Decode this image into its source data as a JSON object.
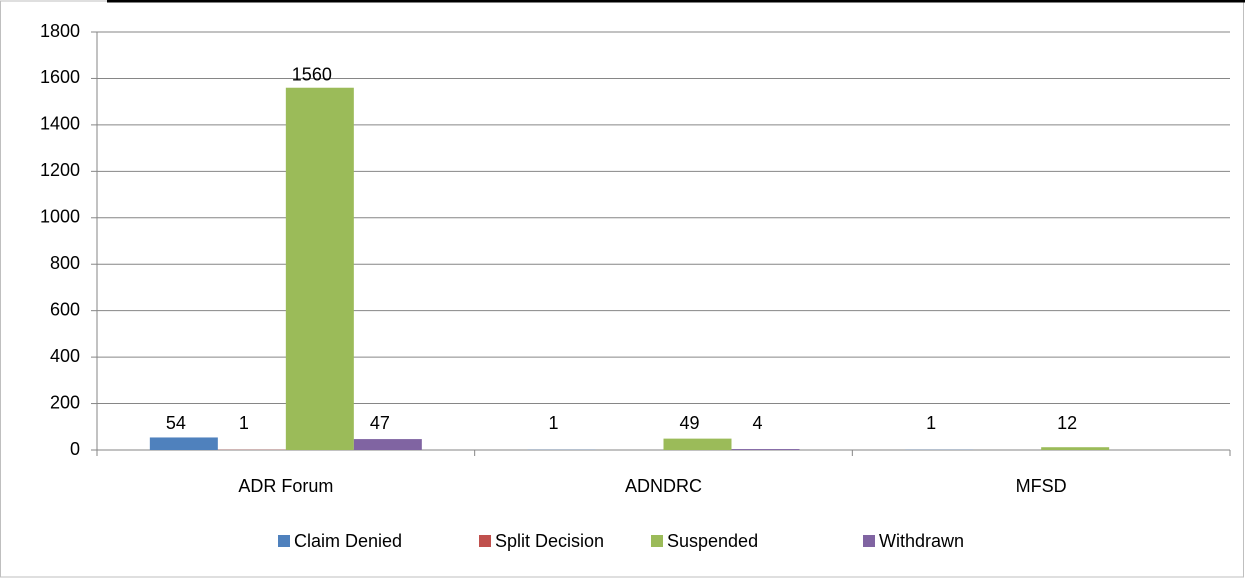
{
  "chart_data": {
    "type": "bar",
    "categories": [
      "ADR Forum",
      "ADNDRC",
      "MFSD"
    ],
    "series": [
      {
        "name": "Claim Denied",
        "color": "#4f81bd",
        "values": [
          54,
          1,
          1
        ]
      },
      {
        "name": "Split Decision",
        "color": "#c0504d",
        "values": [
          1,
          null,
          null
        ]
      },
      {
        "name": "Suspended",
        "color": "#9bbb59",
        "values": [
          1560,
          49,
          12
        ]
      },
      {
        "name": "Withdrawn",
        "color": "#8064a2",
        "values": [
          47,
          4,
          null
        ]
      }
    ],
    "ylim": [
      0,
      1800
    ],
    "yticks": [
      0,
      200,
      400,
      600,
      800,
      1000,
      1200,
      1400,
      1600,
      1800
    ],
    "grid": true,
    "legend": "bottom",
    "data_labels": true
  }
}
